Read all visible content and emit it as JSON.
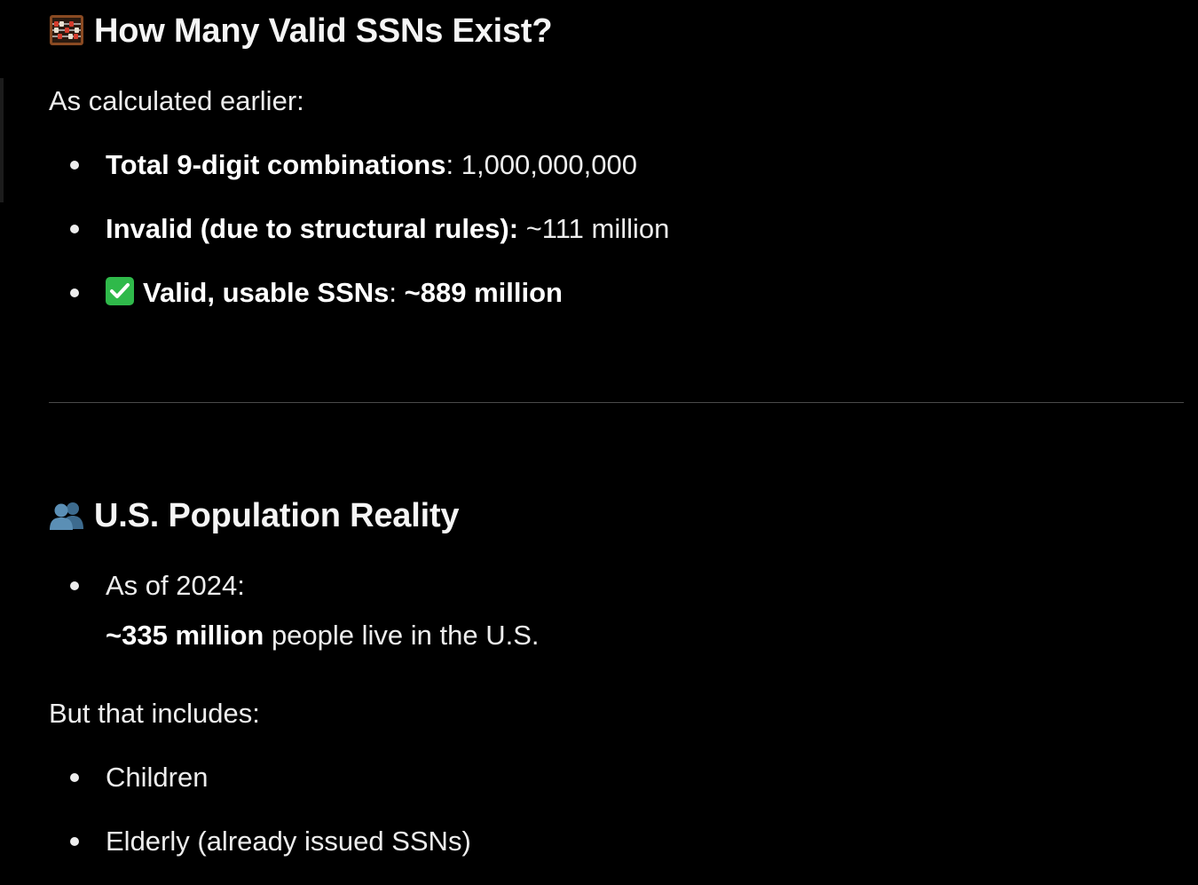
{
  "section1": {
    "heading_icon": "abacus-icon",
    "heading": "How Many Valid SSNs Exist?",
    "intro": "As calculated earlier:",
    "items": [
      {
        "label": "Total 9-digit combinations",
        "sep": ": ",
        "value": "1,000,000,000"
      },
      {
        "label": "Invalid (due to structural rules):",
        "sep": " ",
        "value": "~111 million"
      },
      {
        "icon": "check-mark-button-icon",
        "label": "Valid, usable SSNs",
        "sep": ": ",
        "value": "~889 million"
      }
    ]
  },
  "section2": {
    "heading_icon": "busts-in-silhouette-icon",
    "heading": "U.S. Population Reality",
    "bullet1": "As of 2024:",
    "bullet1_cont_bold": "~335 million",
    "bullet1_cont_rest": " people live in the U.S.",
    "para": "But that includes:",
    "items": [
      {
        "text": "Children"
      },
      {
        "text": "Elderly (already issued SSNs)"
      }
    ]
  },
  "colors": {
    "background": "#000000",
    "text": "#ededed",
    "check_green": "#2fb94a",
    "divider": "#4a4a4a"
  }
}
